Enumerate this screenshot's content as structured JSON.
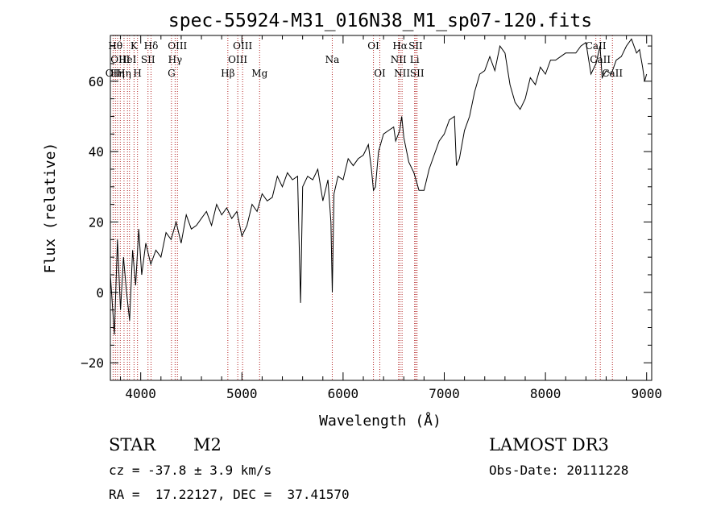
{
  "chart_data": {
    "type": "line",
    "title": "spec-55924-M31_016N38_M1_sp07-120.fits",
    "xlabel": "Wavelength (Å)",
    "ylabel": "Flux (relative)",
    "xlim": [
      3700,
      9050
    ],
    "ylim": [
      -25,
      73
    ],
    "xticks": [
      4000,
      5000,
      6000,
      7000,
      8000,
      9000
    ],
    "yticks": [
      -20,
      0,
      20,
      40,
      60
    ],
    "line_color": "#000000",
    "marker_color": "#b22222",
    "series": [
      {
        "name": "flux",
        "x": [
          3700,
          3740,
          3770,
          3800,
          3830,
          3860,
          3890,
          3920,
          3950,
          3980,
          4010,
          4050,
          4100,
          4150,
          4200,
          4250,
          4300,
          4350,
          4400,
          4450,
          4500,
          4550,
          4600,
          4650,
          4700,
          4750,
          4800,
          4850,
          4900,
          4950,
          5000,
          5050,
          5100,
          5150,
          5200,
          5250,
          5300,
          5350,
          5400,
          5450,
          5500,
          5550,
          5580,
          5600,
          5650,
          5700,
          5750,
          5800,
          5850,
          5880,
          5893,
          5910,
          5950,
          6000,
          6050,
          6100,
          6150,
          6200,
          6250,
          6280,
          6300,
          6320,
          6350,
          6400,
          6450,
          6500,
          6520,
          6560,
          6580,
          6600,
          6650,
          6700,
          6750,
          6800,
          6850,
          6900,
          6950,
          7000,
          7050,
          7100,
          7120,
          7150,
          7200,
          7250,
          7300,
          7350,
          7400,
          7450,
          7500,
          7550,
          7600,
          7650,
          7700,
          7750,
          7800,
          7850,
          7900,
          7950,
          8000,
          8050,
          8100,
          8150,
          8200,
          8250,
          8300,
          8350,
          8400,
          8450,
          8500,
          8540,
          8560,
          8600,
          8650,
          8700,
          8750,
          8800,
          8850,
          8900,
          8930,
          8960,
          8980,
          9000
        ],
        "y": [
          5,
          -12,
          15,
          -5,
          10,
          0,
          -8,
          12,
          2,
          18,
          5,
          14,
          8,
          12,
          10,
          17,
          15,
          20,
          14,
          22,
          18,
          19,
          21,
          23,
          19,
          25,
          22,
          24,
          21,
          23,
          16,
          19,
          25,
          23,
          28,
          26,
          27,
          33,
          30,
          34,
          32,
          33,
          -3,
          30,
          33,
          32,
          35,
          26,
          32,
          20,
          0,
          28,
          33,
          32,
          38,
          36,
          38,
          39,
          42,
          35,
          29,
          30,
          40,
          45,
          46,
          47,
          43,
          46,
          50,
          44,
          37,
          34,
          29,
          29,
          35,
          39,
          43,
          45,
          49,
          50,
          36,
          38,
          46,
          50,
          57,
          62,
          63,
          67,
          63,
          70,
          68,
          59,
          54,
          52,
          55,
          61,
          59,
          64,
          62,
          66,
          66,
          67,
          68,
          68,
          68,
          70,
          71,
          62,
          65,
          70,
          61,
          63,
          62,
          66,
          67,
          70,
          72,
          68,
          69,
          64,
          60,
          62
        ]
      }
    ],
    "line_markers": [
      {
        "wavelength": 3727,
        "label": "OII",
        "row": 2
      },
      {
        "wavelength": 3750,
        "label": "Hθ",
        "row": 0
      },
      {
        "wavelength": 3771,
        "label": "Hη",
        "row": 2
      },
      {
        "wavelength": 3798,
        "label": "OIII",
        "row": 1
      },
      {
        "wavelength": 3835,
        "label": "Hη",
        "row": 2
      },
      {
        "wavelength": 3869,
        "label": "HeI",
        "row": 1
      },
      {
        "wavelength": 3889,
        "label": "",
        "row": 0
      },
      {
        "wavelength": 3934,
        "label": "K",
        "row": 0
      },
      {
        "wavelength": 3968,
        "label": "H",
        "row": 2
      },
      {
        "wavelength": 4072,
        "label": "SII",
        "row": 1
      },
      {
        "wavelength": 4102,
        "label": "Hδ",
        "row": 0
      },
      {
        "wavelength": 4304,
        "label": "G",
        "row": 2
      },
      {
        "wavelength": 4340,
        "label": "Hγ",
        "row": 1
      },
      {
        "wavelength": 4363,
        "label": "OIII",
        "row": 0
      },
      {
        "wavelength": 4861,
        "label": "Hβ",
        "row": 2
      },
      {
        "wavelength": 4959,
        "label": "OIII",
        "row": 1
      },
      {
        "wavelength": 5007,
        "label": "OIII",
        "row": 0
      },
      {
        "wavelength": 5175,
        "label": "Mg",
        "row": 2
      },
      {
        "wavelength": 5893,
        "label": "Na",
        "row": 1
      },
      {
        "wavelength": 6300,
        "label": "OI",
        "row": 0
      },
      {
        "wavelength": 6363,
        "label": "OI",
        "row": 2
      },
      {
        "wavelength": 6548,
        "label": "NII",
        "row": 1
      },
      {
        "wavelength": 6563,
        "label": "Hα",
        "row": 0
      },
      {
        "wavelength": 6583,
        "label": "NII",
        "row": 2
      },
      {
        "wavelength": 6707,
        "label": "Li",
        "row": 1
      },
      {
        "wavelength": 6717,
        "label": "SII",
        "row": 0
      },
      {
        "wavelength": 6731,
        "label": "SII",
        "row": 2
      },
      {
        "wavelength": 8498,
        "label": "CaII",
        "row": 0
      },
      {
        "wavelength": 8542,
        "label": "CaII",
        "row": 1
      },
      {
        "wavelength": 8662,
        "label": "CaII",
        "row": 2
      }
    ]
  },
  "info": {
    "object_class": "STAR",
    "subclass": "M2",
    "survey": "LAMOST DR3",
    "velocity": "cz = -37.8 ± 3.9 km/s",
    "obs_date": "Obs-Date: 20111228",
    "coords": "RA =  17.22127, DEC =  37.41570"
  }
}
